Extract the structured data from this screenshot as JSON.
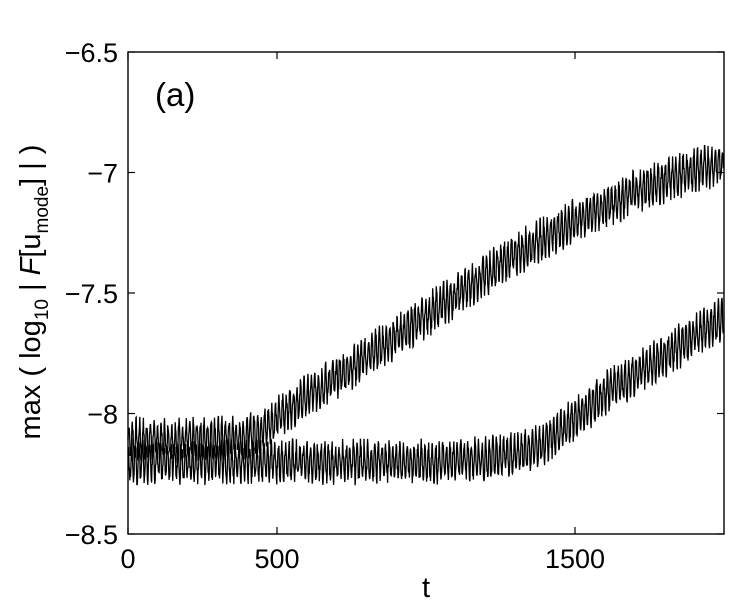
{
  "chart_data": {
    "type": "line",
    "panel_label": "(a)",
    "xlabel": "t",
    "ylabel": {
      "prefix": "max ( log",
      "sub10": "10",
      "mid": " | ",
      "F": "F",
      "bracket_open": "[u",
      "sub_mode": "mode",
      "suffix": "] | )"
    },
    "xlim": [
      0,
      2000
    ],
    "ylim": [
      -8.5,
      -6.5
    ],
    "x_ticks": [
      0,
      500,
      1500
    ],
    "x_tick_labels": [
      "0",
      "500",
      "1500"
    ],
    "y_ticks": [
      -6.5,
      -7,
      -7.5,
      -8,
      -8.5
    ],
    "y_tick_labels": [
      "−6.5",
      "−7",
      "−7.5",
      "−8",
      "−8.5"
    ],
    "grid": false,
    "legend": "none",
    "series": [
      {
        "color": "#000000",
        "oscillation_amplitude": 0.07,
        "oscillation_period": 12,
        "envelope": [
          [
            0,
            -8.11
          ],
          [
            200,
            -8.11
          ],
          [
            380,
            -8.1
          ],
          [
            450,
            -8.07
          ],
          [
            550,
            -7.97
          ],
          [
            700,
            -7.85
          ],
          [
            900,
            -7.68
          ],
          [
            1100,
            -7.51
          ],
          [
            1300,
            -7.34
          ],
          [
            1500,
            -7.2
          ],
          [
            1700,
            -7.08
          ],
          [
            1900,
            -6.99
          ],
          [
            2000,
            -6.96
          ]
        ]
      },
      {
        "color": "#000000",
        "oscillation_amplitude": 0.07,
        "oscillation_period": 12,
        "envelope": [
          [
            0,
            -8.2
          ],
          [
            300,
            -8.2
          ],
          [
            700,
            -8.2
          ],
          [
            1000,
            -8.2
          ],
          [
            1200,
            -8.19
          ],
          [
            1300,
            -8.17
          ],
          [
            1400,
            -8.12
          ],
          [
            1500,
            -8.02
          ],
          [
            1600,
            -7.92
          ],
          [
            1700,
            -7.84
          ],
          [
            1800,
            -7.76
          ],
          [
            1900,
            -7.68
          ],
          [
            2000,
            -7.6
          ]
        ]
      }
    ]
  }
}
